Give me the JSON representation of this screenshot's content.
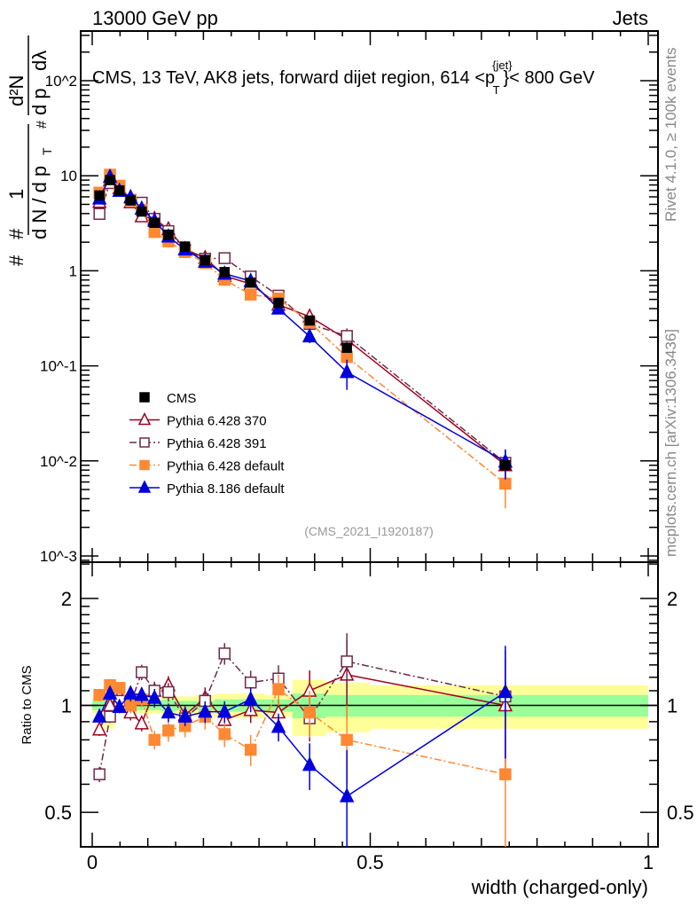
{
  "header": {
    "left": "13000 GeV pp",
    "right": "Jets"
  },
  "side_texts": {
    "rivet": "Rivet 4.1.0, ≥ 100k events",
    "mcplots": "mcplots.cern.ch [arXiv:1306.3436]"
  },
  "watermark": "(CMS_2021_I1920187)",
  "chart_data": {
    "type": "scatter",
    "title": "CMS, 13 TeV, AK8 jets, forward dijet region, 614 <p_T^{jet}< 800 GeV",
    "title_parts": {
      "main": "CMS, 13 TeV, AK8 jets, forward dijet region, 614 <p",
      "sup": "{jet}",
      "sub": "T",
      "end": "}< 800 GeV"
    },
    "xlabel": "width (charged-only)",
    "ylabel_parts": {
      "hash_top": "#",
      "one": "1",
      "hash_mid": "#",
      "dn": "d N / d p",
      "t": "T",
      "d2n": "d²N",
      "dpt": "d p",
      "dl": "dλ",
      "hash_r": "#"
    },
    "ratio_ylabel": "Ratio to CMS",
    "xlim": [
      0,
      1
    ],
    "ylim": [
      0.00086,
      333
    ],
    "yscale": "log",
    "ratio_ylim": [
      0.4,
      2.53
    ],
    "x_tick_labels": [
      "0",
      "0.5",
      "1"
    ],
    "y_tick_labels": [
      "10^-3",
      "10^-2",
      "10^-1",
      "1",
      "10",
      "10^2"
    ],
    "ratio_tick_labels": [
      "0.5",
      "1",
      "2"
    ],
    "x": [
      0.013,
      0.032,
      0.049,
      0.069,
      0.089,
      0.112,
      0.137,
      0.167,
      0.203,
      0.238,
      0.285,
      0.335,
      0.391,
      0.458,
      0.743
    ],
    "bin_edges": [
      0,
      0.02,
      0.04,
      0.06,
      0.08,
      0.1,
      0.125,
      0.15,
      0.185,
      0.22,
      0.26,
      0.31,
      0.36,
      0.42,
      0.5,
      1.0
    ],
    "cms": {
      "name": "CMS",
      "color": "#000000",
      "values": [
        6.2,
        9.0,
        7.0,
        5.5,
        4.2,
        3.2,
        2.4,
        1.8,
        1.3,
        0.97,
        0.75,
        0.46,
        0.3,
        0.155,
        0.009
      ],
      "band_inner": [
        0.03,
        0.04,
        0.03,
        0.03,
        0.03,
        0.03,
        0.04,
        0.03,
        0.03,
        0.04,
        0.04,
        0.04,
        0.08,
        0.07,
        0.07
      ],
      "band_outer": [
        0.05,
        0.14,
        0.05,
        0.05,
        0.05,
        0.05,
        0.08,
        0.06,
        0.07,
        0.08,
        0.08,
        0.07,
        0.18,
        0.16,
        0.14
      ],
      "band_inner_color": "#99ff99",
      "band_outer_color": "#ffff99"
    },
    "series": [
      {
        "name": "Pythia 6.428 370",
        "color": "#a0001e",
        "marker": "open-triangle",
        "dash": "",
        "ratio": [
          0.855,
          1.0,
          1.06,
          0.955,
          0.89,
          1.1,
          1.14,
          0.94,
          1.05,
          0.91,
          0.97,
          0.955,
          1.1,
          1.22,
          1.0
        ],
        "rel_err": [
          0.04,
          0.04,
          0.04,
          0.05,
          0.05,
          0.06,
          0.06,
          0.06,
          0.07,
          0.07,
          0.08,
          0.09,
          0.14,
          0.25,
          0.35
        ]
      },
      {
        "name": "Pythia 6.428 391",
        "color": "#6e2a4a",
        "marker": "open-square",
        "dash": "8,3,2,3",
        "ratio": [
          0.64,
          0.93,
          1.03,
          1.01,
          1.24,
          1.1,
          1.09,
          0.92,
          1.03,
          1.4,
          1.16,
          1.19,
          0.92,
          1.33,
          1.06
        ],
        "rel_err": [
          0.05,
          0.04,
          0.04,
          0.05,
          0.05,
          0.06,
          0.06,
          0.06,
          0.07,
          0.07,
          0.08,
          0.09,
          0.14,
          0.2,
          0.35
        ]
      },
      {
        "name": "Pythia 6.428 default",
        "color": "#ff8833",
        "marker": "filled-square",
        "dash": "8,3,2,3",
        "ratio": [
          1.07,
          1.14,
          1.12,
          1.0,
          1.04,
          0.8,
          0.85,
          0.875,
          0.93,
          0.83,
          0.75,
          1.11,
          0.955,
          0.8,
          0.64
        ],
        "rel_err": [
          0.04,
          0.04,
          0.04,
          0.05,
          0.05,
          0.06,
          0.07,
          0.07,
          0.08,
          0.08,
          0.1,
          0.1,
          0.15,
          0.25,
          0.45
        ]
      },
      {
        "name": "Pythia 8.186 default",
        "color": "#0000dd",
        "marker": "filled-triangle",
        "dash": "",
        "ratio": [
          0.93,
          1.08,
          0.99,
          1.08,
          1.07,
          1.05,
          0.955,
          0.93,
          0.96,
          0.96,
          1.04,
          0.87,
          0.68,
          0.555,
          1.09
        ],
        "rel_err": [
          0.04,
          0.04,
          0.04,
          0.05,
          0.05,
          0.06,
          0.06,
          0.06,
          0.07,
          0.07,
          0.08,
          0.09,
          0.15,
          0.35,
          0.35
        ]
      }
    ],
    "legend_position": "center-left"
  }
}
